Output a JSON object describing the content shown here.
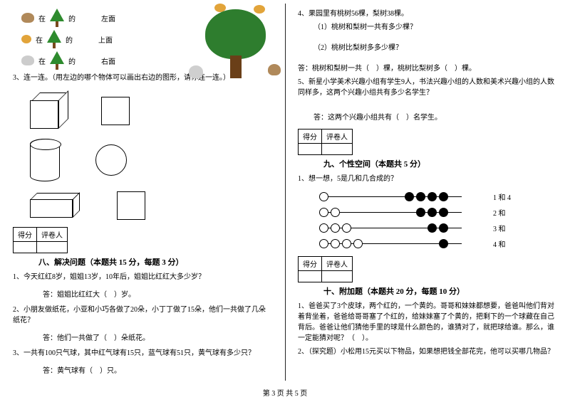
{
  "footer": "第 3 页 共 5 页",
  "left": {
    "icon_caption_in": "在",
    "icon_caption_of": "的",
    "positions": [
      "左面",
      "上面",
      "右面"
    ],
    "q3": "3、连一连。（用左边的哪个物体可以画出右边的图形，请你连一连。）",
    "score_h1": "得分",
    "score_h2": "评卷人",
    "sec8_title": "八、解决问题（本题共 15 分，每题 3 分）",
    "sec8_q1": "1、今天红红8岁，姐姐13岁，10年后，姐姐比红红大多少岁？",
    "sec8_a1": "答：姐姐比红红大（　）岁。",
    "sec8_q2": "2、小朋友做纸花，小亚和小巧各做了20朵，小丁丁做了15朵，他们一共做了几朵纸花？",
    "sec8_a2": "答：他们一共做了（　）朵纸花。",
    "sec8_q3": "3、一共有100只气球，其中红气球有15只，蓝气球有51只，黄气球有多少只？",
    "sec8_a3": "答：黄气球有（　）只。"
  },
  "right": {
    "q4": "4、果园里有桃树56棵，梨树38棵。",
    "q4_1": "（1）桃树和梨树一共有多少棵？",
    "q4_2": "（2）桃树比梨树多多少棵？",
    "q4_ans": "答：桃树和梨树一共（　）棵，桃树比梨树多（　）棵。",
    "q5": "5、新星小学美术兴趣小组有学生9人，书法兴趣小组的人数和美术兴趣小组的人数同样多，这两个兴趣小组共有多少名学生？",
    "q5_ans": "答：这两个兴趣小组共有（　）名学生。",
    "score_h1": "得分",
    "score_h2": "评卷人",
    "sec9_title": "九、个性空间（本题共 5 分）",
    "sec9_q1": "1、想一想，5是几和几合成的？",
    "abacus_labels": [
      "1 和 4",
      "2 和",
      "3 和",
      "4 和"
    ],
    "sec10_title": "十、附加题（本题共 20 分，每题 10 分）",
    "sec10_q1": "1、爸爸买了3个皮球，两个红的，一个黄的。哥哥和妹妹都想要，爸爸叫他们背对着背坐着，爸爸给哥哥塞了个红的，给妹妹塞了个黄的，把剩下的一个球藏在自己背后。爸爸让他们猜他手里的球是什么颜色的，谁猜对了，就把球给谁。那么，谁一定能猜对呢？（　）。",
    "sec10_q2": "2、（探究题）小松用15元买以下物品，如果想把钱全部花完，他可以买哪几物品？"
  },
  "abacus": {
    "rows": [
      {
        "empty": [
          0
        ],
        "filled": [
          120,
          136,
          152,
          168
        ]
      },
      {
        "empty": [
          0,
          16
        ],
        "filled": [
          136,
          152,
          168
        ]
      },
      {
        "empty": [
          0,
          16,
          32
        ],
        "filled": [
          152,
          168
        ]
      },
      {
        "empty": [
          0,
          16,
          32,
          48
        ],
        "filled": [
          168
        ]
      }
    ]
  }
}
